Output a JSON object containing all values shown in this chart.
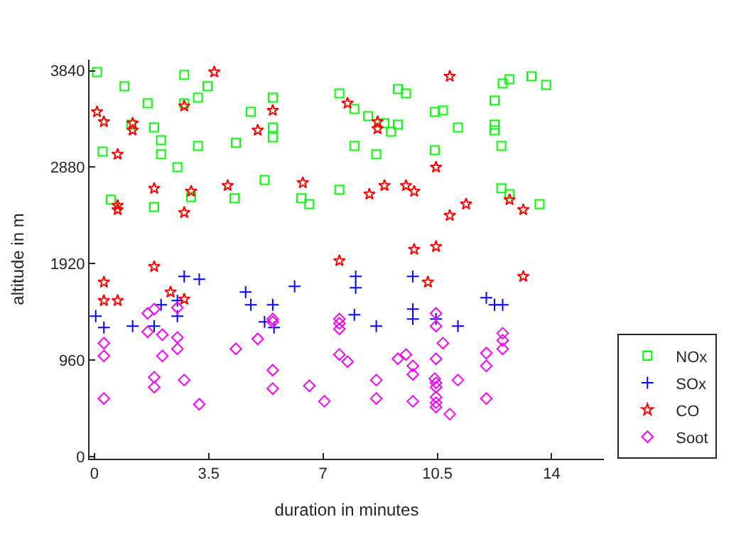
{
  "chart_data": {
    "type": "scatter",
    "xlabel": "duration in minutes",
    "ylabel": "altitude in m",
    "xlim": [
      -0.15,
      15.6
    ],
    "ylim": [
      -20,
      3950
    ],
    "xticks": [
      0,
      3.5,
      7,
      10.5,
      14
    ],
    "yticks": [
      0,
      960,
      1920,
      2880,
      3840
    ],
    "grid": false,
    "legend": "bottom right",
    "series": [
      {
        "name": "NOx",
        "color": "#00ff00",
        "marker": "square",
        "x": [
          0.08,
          0.92,
          2.75,
          3.46,
          1.63,
          3.17,
          2.75,
          5.46,
          4.79,
          5.46,
          5.46,
          1.83,
          1.13,
          2.04,
          3.17,
          4.33,
          0.25,
          2.04,
          2.54,
          5.21,
          0.5,
          1.83,
          2.96,
          4.29,
          6.33,
          6.58,
          7.5,
          9.29,
          9.54,
          7.96,
          8.38,
          8.88,
          9.29,
          9.08,
          7.96,
          8.63,
          10.42,
          10.67,
          11.13,
          12.25,
          12.25,
          12.25,
          12.46,
          12.5,
          12.71,
          13.38,
          13.83,
          10.42,
          7.5,
          12.46,
          12.71,
          13.63
        ],
        "values": [
          3827,
          3685,
          3798,
          3685,
          3516,
          3572,
          3516,
          3572,
          3431,
          3276,
          3177,
          3276,
          3304,
          3149,
          3092,
          3121,
          3036,
          3008,
          2880,
          2753,
          2556,
          2485,
          2584,
          2570,
          2570,
          2513,
          3615,
          3657,
          3615,
          3459,
          3389,
          3318,
          3304,
          3233,
          3092,
          3008,
          3431,
          3445,
          3276,
          3544,
          3304,
          3248,
          3092,
          3714,
          3756,
          3784,
          3699,
          3050,
          2655,
          2669,
          2612,
          2513
        ]
      },
      {
        "name": "SOx",
        "color": "#0000ff",
        "marker": "cross",
        "x": [
          2.75,
          3.21,
          0.04,
          0.29,
          1.17,
          1.83,
          2.04,
          2.54,
          2.54,
          4.63,
          4.79,
          5.21,
          5.46,
          5.5,
          6.13,
          8.0,
          8.0,
          9.75,
          7.96,
          8.63,
          9.75,
          9.75,
          10.46,
          11.13,
          12.0,
          12.25,
          12.5
        ],
        "values": [
          1793,
          1765,
          1398,
          1285,
          1299,
          1299,
          1511,
          1553,
          1398,
          1638,
          1511,
          1341,
          1511,
          1285,
          1694,
          1793,
          1680,
          1793,
          1412,
          1299,
          1468,
          1370,
          1370,
          1299,
          1581,
          1511,
          1511
        ]
      },
      {
        "name": "CO",
        "color": "#ff0000",
        "marker": "star",
        "x": [
          3.67,
          0.08,
          0.29,
          1.17,
          1.17,
          0.71,
          2.75,
          5.46,
          5.0,
          1.83,
          2.96,
          4.08,
          6.38,
          0.71,
          0.71,
          2.75,
          1.83,
          10.88,
          7.75,
          8.67,
          8.67,
          10.46,
          8.88,
          9.54,
          9.79,
          8.42,
          11.38,
          10.88,
          12.71,
          13.13,
          9.79,
          10.46,
          7.5,
          0.29,
          0.29,
          0.71,
          2.33,
          2.75,
          10.21,
          13.13
        ],
        "values": [
          3827,
          3431,
          3332,
          3318,
          3248,
          3008,
          3488,
          3445,
          3248,
          2669,
          2640,
          2697,
          2725,
          2499,
          2457,
          2429,
          1892,
          3784,
          3516,
          3332,
          3262,
          2880,
          2697,
          2697,
          2640,
          2612,
          2513,
          2400,
          2556,
          2457,
          2062,
          2090,
          1949,
          1737,
          1553,
          1553,
          1638,
          1567,
          1737,
          1793
        ]
      },
      {
        "name": "Soot",
        "color": "#ff00ff",
        "marker": "diamond",
        "x": [
          1.63,
          1.83,
          1.63,
          2.08,
          2.54,
          2.54,
          2.54,
          0.29,
          0.29,
          2.08,
          1.83,
          1.83,
          2.75,
          0.29,
          3.21,
          4.33,
          5.0,
          5.46,
          5.46,
          5.46,
          5.46,
          6.58,
          7.04,
          7.5,
          7.5,
          7.5,
          7.5,
          7.75,
          9.29,
          9.54,
          9.75,
          9.75,
          8.63,
          8.63,
          9.75,
          10.46,
          10.46,
          10.67,
          10.46,
          10.42,
          10.46,
          10.46,
          10.46,
          10.46,
          10.46,
          10.88,
          11.13,
          12.0,
          12.0,
          12.0,
          12.5,
          12.5,
          12.5
        ],
        "values": [
          1426,
          1468,
          1243,
          1214,
          1483,
          1186,
          1073,
          1130,
          1003,
          1003,
          791,
          692,
          763,
          579,
          522,
          1073,
          1172,
          1370,
          1341,
          861,
          678,
          706,
          551,
          1370,
          1327,
          1271,
          1017,
          946,
          974,
          1017,
          904,
          819,
          763,
          579,
          551,
          1426,
          1299,
          1130,
          974,
          777,
          734,
          692,
          593,
          537,
          494,
          424,
          763,
          1031,
          904,
          579,
          1228,
          1158,
          1073
        ]
      }
    ]
  }
}
